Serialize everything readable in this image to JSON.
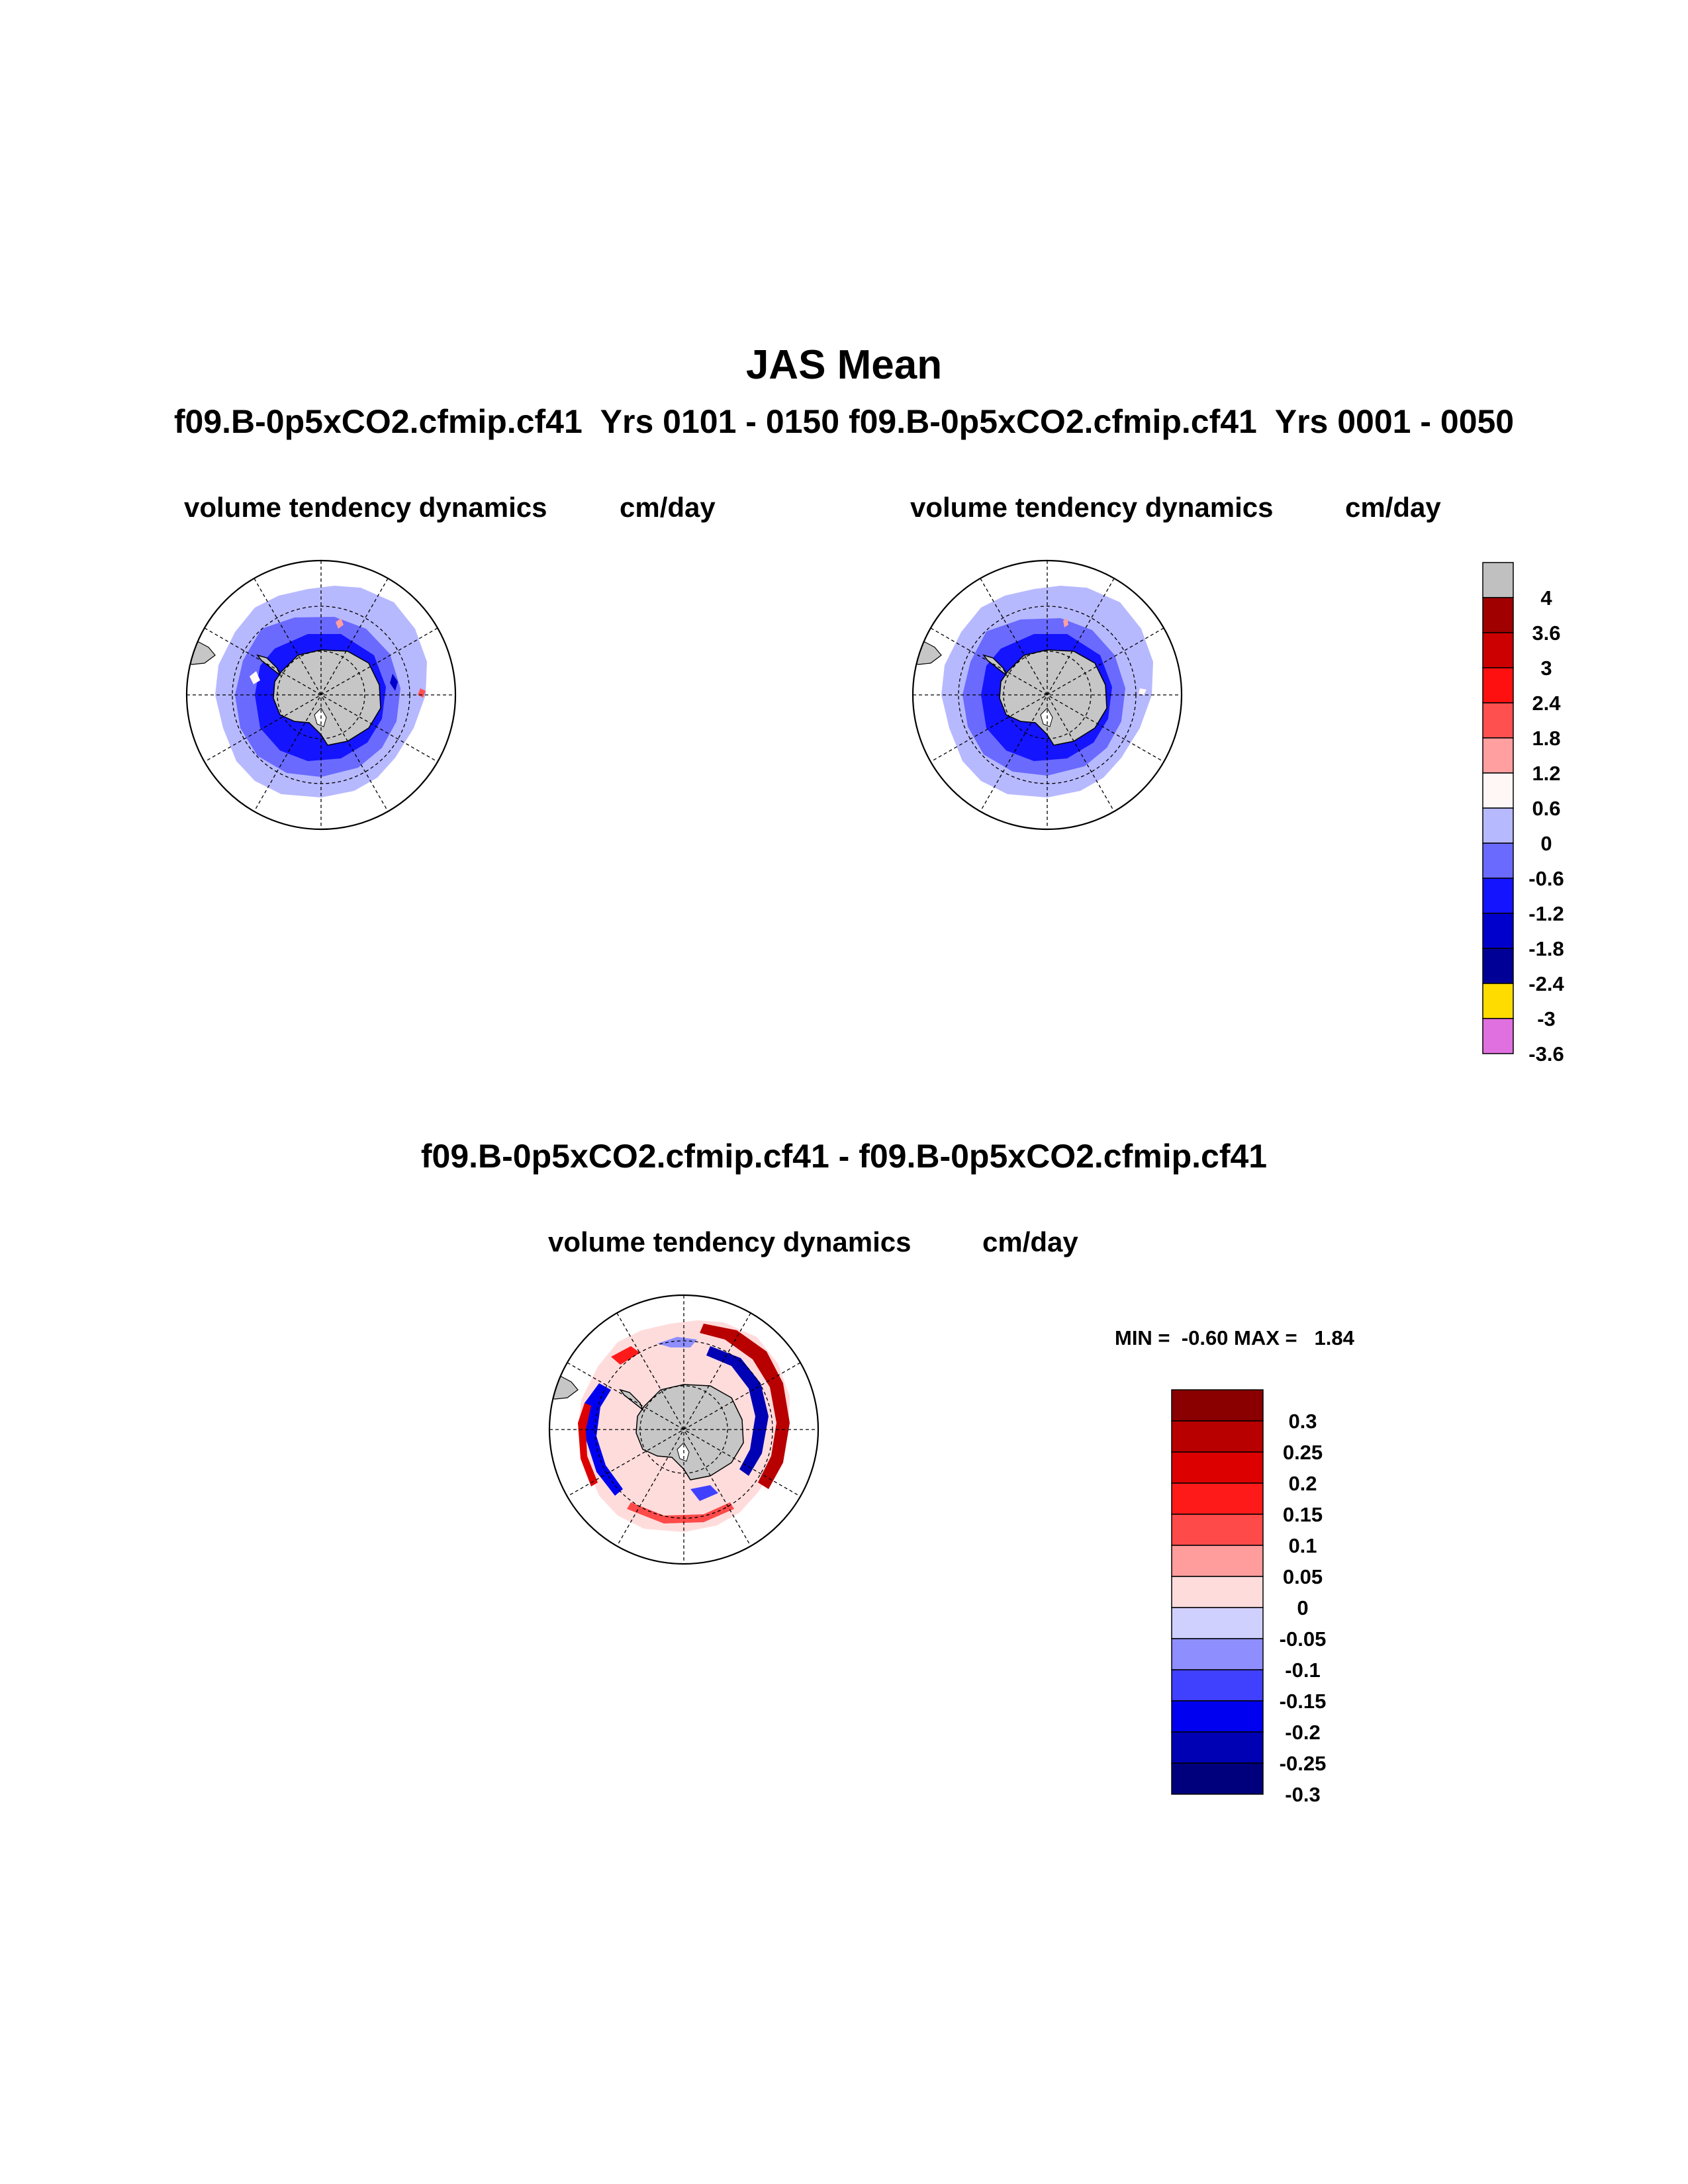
{
  "title": "JAS Mean",
  "case_line": "f09.B-0p5xCO2.cfmip.cf41  Yrs 0101 - 0150 f09.B-0p5xCO2.cfmip.cf41  Yrs 0001 - 0050",
  "diff_title": "f09.B-0p5xCO2.cfmip.cf41 - f09.B-0p5xCO2.cfmip.cf41",
  "minmax": "MIN =  -0.60 MAX =   1.84",
  "chart_data": [
    {
      "type": "heatmap",
      "projection": "south-polar-stereographic",
      "title": "volume tendency dynamics",
      "units": "cm/day",
      "case": "f09.B-0p5xCO2.cfmip.cf41",
      "years": "0101 - 0150",
      "field_summary": {
        "dominant_range": [
          -1.2,
          0.6
        ],
        "coastal_band_range": [
          -1.8,
          -0.6
        ],
        "isolated_positive_max": 1.8
      }
    },
    {
      "type": "heatmap",
      "projection": "south-polar-stereographic",
      "title": "volume tendency dynamics",
      "units": "cm/day",
      "case": "f09.B-0p5xCO2.cfmip.cf41",
      "years": "0001 - 0050",
      "field_summary": {
        "dominant_range": [
          -1.2,
          0.6
        ],
        "coastal_band_range": [
          -1.8,
          -0.6
        ],
        "isolated_positive_max": 1.8
      }
    },
    {
      "type": "heatmap",
      "projection": "south-polar-stereographic",
      "title": "volume tendency dynamics",
      "units": "cm/day",
      "difference": true,
      "min": -0.6,
      "max": 1.84
    }
  ],
  "colorbar_abs": {
    "labels": [
      "4",
      "3.6",
      "3",
      "2.4",
      "1.8",
      "1.2",
      "0.6",
      "0",
      "-0.6",
      "-1.2",
      "-1.8",
      "-2.4",
      "-3",
      "-3.6"
    ],
    "colors": [
      "#c0c0c0",
      "#a00000",
      "#cc0000",
      "#ff1010",
      "#ff5050",
      "#ff9f9f",
      "#fff6f6",
      "#b7b9ff",
      "#6a6aff",
      "#1414ff",
      "#0000cc",
      "#000096",
      "#ffdc00",
      "#e070e0"
    ]
  },
  "colorbar_diff": {
    "labels": [
      "0.3",
      "0.25",
      "0.2",
      "0.15",
      "0.1",
      "0.05",
      "0",
      "-0.05",
      "-0.1",
      "-0.15",
      "-0.2",
      "-0.25",
      "-0.3"
    ],
    "colors": [
      "#8a0000",
      "#b80000",
      "#dc0000",
      "#ff1a1a",
      "#ff4a4a",
      "#ff9c9c",
      "#ffdcdc",
      "#d0d0ff",
      "#8e8eff",
      "#4040ff",
      "#0000f0",
      "#0000b4",
      "#00007c"
    ]
  },
  "colors": {
    "land": "#c6c6c6",
    "frame": "#000000"
  }
}
